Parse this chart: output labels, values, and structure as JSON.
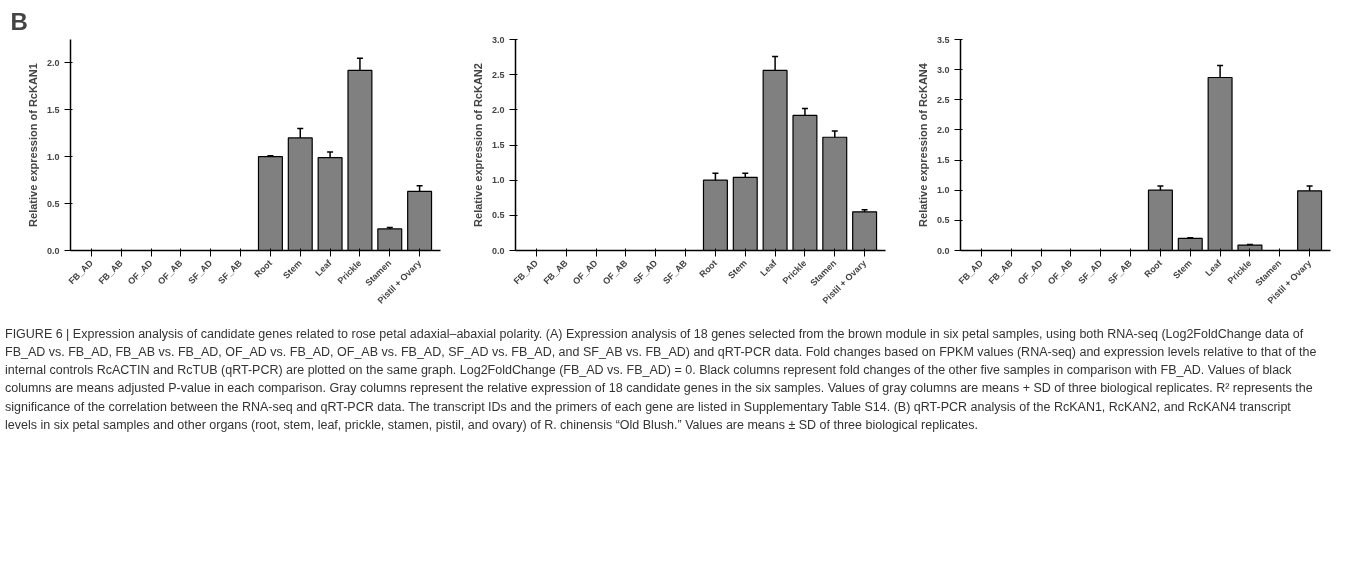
{
  "chart_data": [
    {
      "type": "bar",
      "ylabel": "Relative expression of RcKAN1",
      "categories": [
        "FB_AD",
        "FB_AB",
        "OF_AD",
        "OF_AB",
        "SF_AD",
        "SF_AB",
        "Root",
        "Stem",
        "Leaf",
        "Prickle",
        "Stamen",
        "Pistil + Ovary"
      ],
      "color": "#808080",
      "values": [
        null,
        null,
        null,
        null,
        null,
        null,
        1.0,
        1.2,
        0.99,
        1.92,
        0.23,
        0.63
      ],
      "errors": [
        null,
        null,
        null,
        null,
        null,
        null,
        0.01,
        0.1,
        0.06,
        0.13,
        0.015,
        0.06
      ],
      "ylim": [
        0,
        2.25
      ],
      "yticks": [
        {
          "value": 0,
          "label": "0.0"
        },
        {
          "value": 0.5,
          "label": "0.5"
        },
        {
          "value": 1,
          "label": "1.0"
        },
        {
          "value": 1.5,
          "label": "1.5"
        },
        {
          "value": 2,
          "label": "2.0"
        }
      ],
      "annotations": [
        "B",
        "FIGURE 6 | Expression analysis of candidate genes related to rose petal adaxial–abaxial polarity. (A) Expression analysis of 18 genes selected from the brown module in six petal samples, using both RNA-seq (Log2FoldChange data of FB_AD vs. FB_AD, FB_AB vs. FB_AD, OF_AD vs. FB_AD, OF_AB vs. FB_AD, SF_AD vs. FB_AD, and SF_AB vs. FB_AD) and qRT-PCR data. Fold changes based on FPKM values (RNA-seq) and expression levels relative to that of the internal controls RcACTIN and RcTUB (qRT-PCR) are plotted on the same graph. Log2FoldChange (FB_AD vs. FB_AD) = 0. Black columns represent fold changes of the other five samples in comparison with FB_AD. Values of black columns are means adjusted P-value in each comparison. Gray columns represent the relative expression of 18 candidate genes in the six samples. Values of gray columns are means + SD of three biological replicates. R² represents the significance of the correlation between the RNA-seq and qRT-PCR data. The transcript IDs and the primers of each gene are listed in Supplementary Table S14. (B) qRT-PCR analysis of the RcKAN1, RcKAN2, and RcKAN4 transcript levels in six petal samples and other organs (root, stem, leaf, prickle, stamen, pistil, and ovary) of R. chinensis “Old Blush.” Values are means ± SD of three biological replicates."
      ]
    },
    {
      "type": "bar",
      "ylabel": "Relative expression of RcKAN2",
      "categories": [
        "FB_AD",
        "FB_AB",
        "OF_AD",
        "OF_AB",
        "SF_AD",
        "SF_AB",
        "Root",
        "Stem",
        "Leaf",
        "Prickle",
        "Stamen",
        "Pistil + Ovary"
      ],
      "color": "#808080",
      "values": [
        null,
        null,
        null,
        null,
        null,
        null,
        1.0,
        1.04,
        2.56,
        1.92,
        1.61,
        0.55
      ],
      "errors": [
        null,
        null,
        null,
        null,
        null,
        null,
        0.1,
        0.06,
        0.2,
        0.1,
        0.09,
        0.03
      ],
      "ylim": [
        0,
        3.0
      ],
      "yticks": [
        {
          "value": 0,
          "label": "0.0"
        },
        {
          "value": 0.5,
          "label": "0.5"
        },
        {
          "value": 1,
          "label": "1.0"
        },
        {
          "value": 1.5,
          "label": "1.5"
        },
        {
          "value": 2,
          "label": "2.0"
        },
        {
          "value": 2.5,
          "label": "2.5"
        },
        {
          "value": 3,
          "label": "3.0"
        }
      ]
    },
    {
      "type": "bar",
      "ylabel": "Relative expression of RcKAN4",
      "categories": [
        "FB_AD",
        "FB_AB",
        "OF_AD",
        "OF_AB",
        "SF_AD",
        "SF_AB",
        "Root",
        "Stem",
        "Leaf",
        "Prickle",
        "Stamen",
        "Pistil + Ovary"
      ],
      "color": "#808080",
      "values": [
        null,
        null,
        null,
        null,
        null,
        null,
        1.0,
        0.2,
        2.87,
        0.09,
        null,
        0.99
      ],
      "errors": [
        null,
        null,
        null,
        null,
        null,
        null,
        0.07,
        0.01,
        0.2,
        0.01,
        null,
        0.08
      ],
      "ylim": [
        0,
        3.5
      ],
      "yticks": [
        {
          "value": 0,
          "label": "0.0"
        },
        {
          "value": 0.5,
          "label": "0.5"
        },
        {
          "value": 1,
          "label": "1.0"
        },
        {
          "value": 1.5,
          "label": "1.5"
        },
        {
          "value": 2,
          "label": "2.0"
        },
        {
          "value": 2.5,
          "label": "2.5"
        },
        {
          "value": 3,
          "label": "3.0"
        },
        {
          "value": 3.5,
          "label": "3.5"
        }
      ]
    }
  ]
}
